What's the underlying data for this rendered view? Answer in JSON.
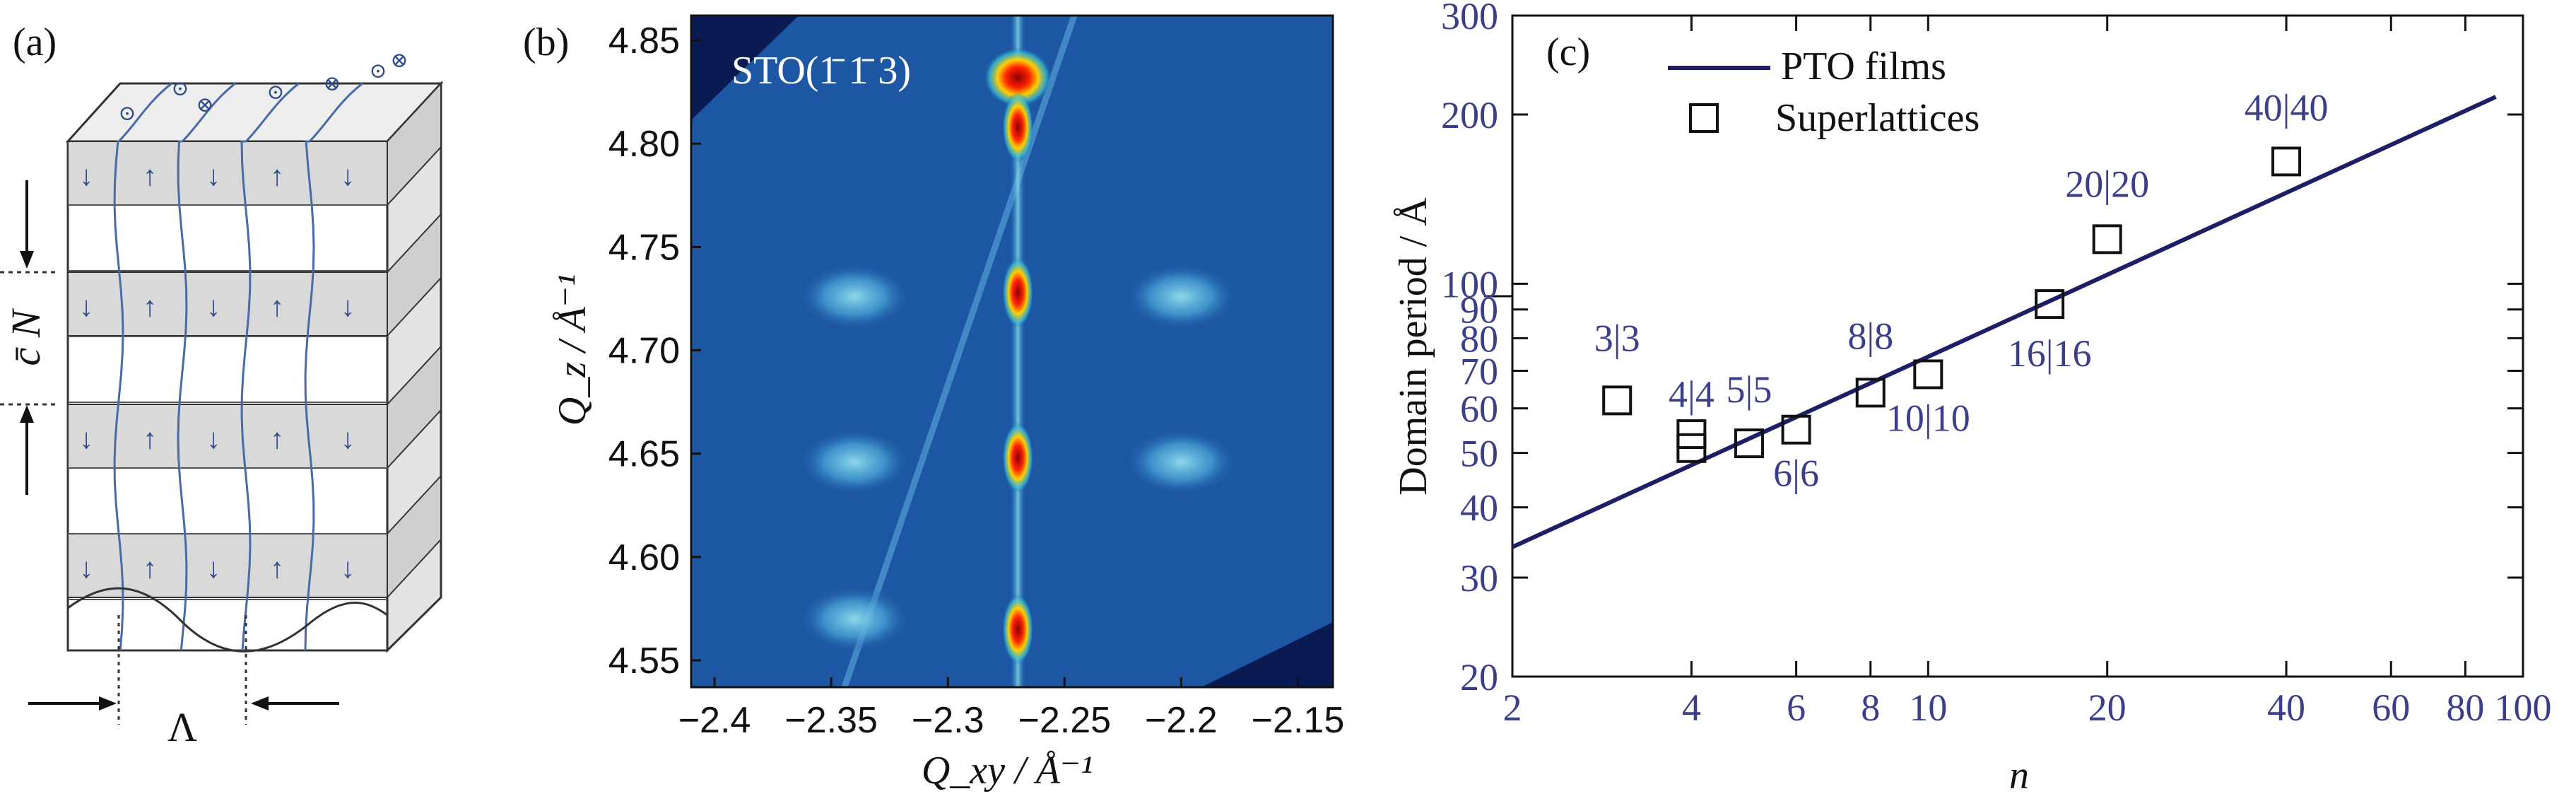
{
  "panel_a": {
    "label": "(a)",
    "period_symbol": "Λ",
    "thickness_symbol": "c̄ N",
    "domain_marker_symbols": [
      "⊙",
      "⊗"
    ],
    "polarization_arrows": [
      "↓",
      "↑"
    ]
  },
  "panel_b": {
    "label": "(b)",
    "annotation": "STO(1̄ 1̄ 3)",
    "xlabel": "Q_xy / Å⁻¹",
    "ylabel": "Q_z / Å⁻¹",
    "xticks": [
      "−2.4",
      "−2.35",
      "−2.3",
      "−2.25",
      "−2.2",
      "−2.15"
    ],
    "yticks": [
      "4.85",
      "4.80",
      "4.75",
      "4.70",
      "4.65",
      "4.60",
      "4.55"
    ]
  },
  "panel_c": {
    "label": "(c)",
    "xlabel": "n",
    "ylabel": "Domain period / Å",
    "xticks": [
      "2",
      "4",
      "6",
      "8",
      "10",
      "20",
      "40",
      "60",
      "80",
      "100"
    ],
    "yticks": [
      "20",
      "30",
      "40",
      "50",
      "60",
      "70",
      "80",
      "90",
      "100",
      "200",
      "300"
    ],
    "legend": {
      "line_label": "PTO films",
      "marker_label": "Superlattices"
    },
    "colors": {
      "line": "#1c1f66",
      "text": "#3b3f8a"
    }
  },
  "chart_data": [
    {
      "type": "heatmap",
      "title": "",
      "xlabel": "Q_xy / Å⁻¹",
      "ylabel": "Q_z / Å⁻¹",
      "xlim": [
        -2.41,
        -2.135
      ],
      "ylim": [
        4.537,
        4.862
      ],
      "peaks": [
        {
          "x": -2.27,
          "y": 4.832
        },
        {
          "x": -2.27,
          "y": 4.808
        },
        {
          "x": -2.27,
          "y": 4.728
        },
        {
          "x": -2.27,
          "y": 4.648
        },
        {
          "x": -2.27,
          "y": 4.565
        },
        {
          "x": -2.34,
          "y": 4.646
        },
        {
          "x": -2.2,
          "y": 4.646
        },
        {
          "x": -2.2,
          "y": 4.726
        },
        {
          "x": -2.34,
          "y": 4.726
        },
        {
          "x": -2.34,
          "y": 4.57
        }
      ]
    },
    {
      "type": "scatter",
      "title": "",
      "xlabel": "n",
      "ylabel": "Domain period / Å",
      "xscale": "log",
      "yscale": "log",
      "xlim": [
        2,
        100
      ],
      "ylim": [
        20,
        300
      ],
      "series": [
        {
          "name": "PTO films",
          "kind": "line",
          "x": [
            2,
            90
          ],
          "y": [
            34,
            215
          ]
        },
        {
          "name": "Superlattices",
          "kind": "marker",
          "points": [
            {
              "label": "3|3",
              "x": 3,
              "y": 62
            },
            {
              "label": "4|4",
              "x": 4,
              "y": 51
            },
            {
              "label": "4|4",
              "x": 4,
              "y": 54
            },
            {
              "label": "5|5",
              "x": 5,
              "y": 52
            },
            {
              "label": "6|6",
              "x": 6,
              "y": 55
            },
            {
              "label": "8|8",
              "x": 8,
              "y": 64
            },
            {
              "label": "10|10",
              "x": 10,
              "y": 69
            },
            {
              "label": "16|16",
              "x": 16,
              "y": 92
            },
            {
              "label": "20|20",
              "x": 20,
              "y": 120
            },
            {
              "label": "40|40",
              "x": 40,
              "y": 165
            }
          ]
        }
      ]
    }
  ]
}
